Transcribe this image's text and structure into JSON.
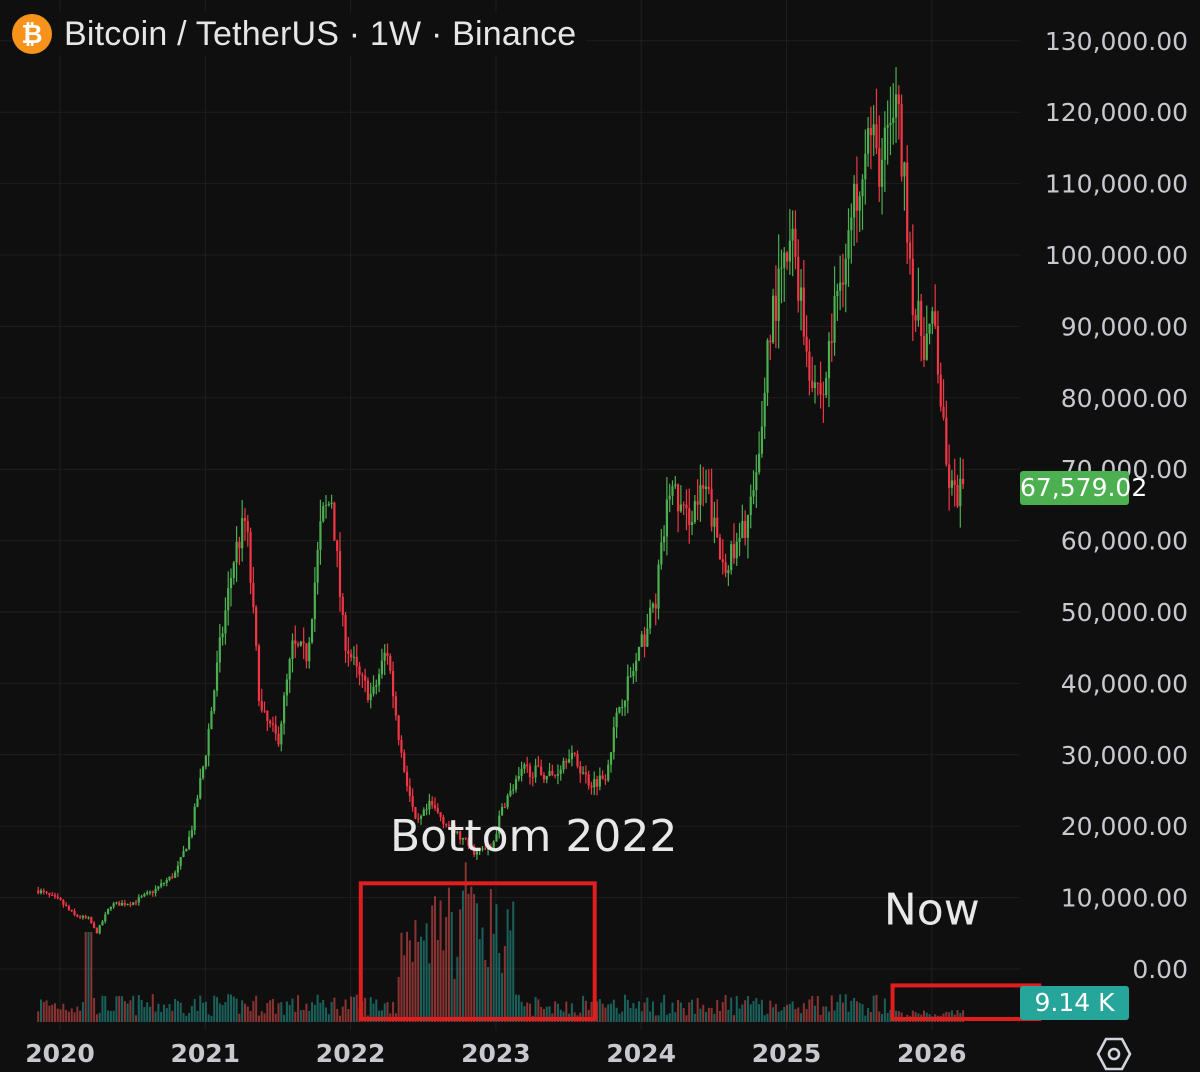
{
  "header": {
    "symbol_icon": "bitcoin-icon",
    "icon_glyph": "₿",
    "title": "Bitcoin / TetherUS · 1W · Binance"
  },
  "colors": {
    "background": "#0f0f0f",
    "grid": "#1f1f1f",
    "up": "#4caf50",
    "down": "#f23645",
    "volume_up": "#26a69a",
    "volume_down": "#ef5350",
    "annotation_box": "#e01e1e",
    "btc_orange": "#f7931a"
  },
  "price_tag": "67,579.02",
  "volume_tag": "9.14 K",
  "settings_icon": "hexagon-gear-icon",
  "chart_data": {
    "type": "candlestick",
    "interval": "1W",
    "y_axis": {
      "ticks": [
        "130,000.00",
        "120,000.00",
        "110,000.00",
        "100,000.00",
        "90,000.00",
        "80,000.00",
        "70,000.00",
        "60,000.00",
        "50,000.00",
        "40,000.00",
        "30,000.00",
        "20,000.00",
        "10,000.00",
        "0.00"
      ],
      "tick_values": [
        130000,
        120000,
        110000,
        100000,
        90000,
        80000,
        70000,
        60000,
        50000,
        40000,
        30000,
        20000,
        10000,
        0
      ],
      "ylim": [
        0,
        130000
      ],
      "position": "right"
    },
    "x_axis": {
      "ticks": [
        "2020",
        "2021",
        "2022",
        "2023",
        "2024",
        "2025",
        "2026"
      ],
      "tick_values": [
        2020,
        2021,
        2022,
        2023,
        2024,
        2025,
        2026
      ],
      "xlim": [
        2019.85,
        2026.95
      ]
    },
    "last_price": 67579.02,
    "last_volume": "9.14 K",
    "price_keyframes": [
      [
        2019.85,
        11000
      ],
      [
        2020.0,
        9500
      ],
      [
        2020.1,
        7500
      ],
      [
        2020.2,
        7000
      ],
      [
        2020.25,
        5000
      ],
      [
        2020.35,
        9000
      ],
      [
        2020.5,
        9300
      ],
      [
        2020.65,
        11000
      ],
      [
        2020.8,
        13500
      ],
      [
        2020.9,
        19000
      ],
      [
        2021.0,
        30000
      ],
      [
        2021.1,
        45000
      ],
      [
        2021.2,
        58000
      ],
      [
        2021.28,
        63000
      ],
      [
        2021.38,
        36000
      ],
      [
        2021.5,
        32000
      ],
      [
        2021.6,
        45000
      ],
      [
        2021.7,
        44000
      ],
      [
        2021.8,
        63000
      ],
      [
        2021.87,
        66000
      ],
      [
        2021.95,
        47000
      ],
      [
        2022.05,
        41000
      ],
      [
        2022.15,
        38000
      ],
      [
        2022.25,
        45000
      ],
      [
        2022.35,
        30000
      ],
      [
        2022.45,
        20000
      ],
      [
        2022.55,
        23000
      ],
      [
        2022.7,
        19500
      ],
      [
        2022.85,
        16500
      ],
      [
        2022.97,
        16800
      ],
      [
        2023.05,
        23000
      ],
      [
        2023.2,
        28000
      ],
      [
        2023.4,
        27000
      ],
      [
        2023.5,
        30500
      ],
      [
        2023.65,
        26000
      ],
      [
        2023.75,
        27000
      ],
      [
        2023.85,
        37000
      ],
      [
        2023.97,
        43000
      ],
      [
        2024.1,
        52000
      ],
      [
        2024.2,
        68000
      ],
      [
        2024.3,
        63000
      ],
      [
        2024.45,
        67000
      ],
      [
        2024.55,
        57000
      ],
      [
        2024.65,
        58000
      ],
      [
        2024.8,
        68000
      ],
      [
        2024.88,
        90000
      ],
      [
        2024.97,
        97000
      ],
      [
        2025.05,
        102000
      ],
      [
        2025.15,
        85000
      ],
      [
        2025.25,
        80000
      ],
      [
        2025.35,
        95000
      ],
      [
        2025.45,
        105000
      ],
      [
        2025.55,
        118000
      ],
      [
        2025.65,
        112000
      ],
      [
        2025.75,
        122000
      ],
      [
        2025.82,
        108000
      ],
      [
        2025.88,
        92000
      ],
      [
        2025.95,
        88000
      ],
      [
        2026.02,
        90000
      ],
      [
        2026.1,
        70000
      ],
      [
        2026.15,
        66000
      ],
      [
        2026.22,
        67579
      ]
    ],
    "annotations": [
      {
        "text": "Bottom 2022",
        "box_x": [
          2022.07,
          2023.68
        ],
        "box_y": [
          -7000,
          12000
        ],
        "label_at": [
          2023.26,
          16500
        ]
      },
      {
        "text": "Now",
        "box_x": [
          2025.73,
          2026.74
        ],
        "box_y": [
          -7000,
          -2300
        ],
        "label_at": [
          2026.0,
          6200
        ]
      }
    ]
  }
}
